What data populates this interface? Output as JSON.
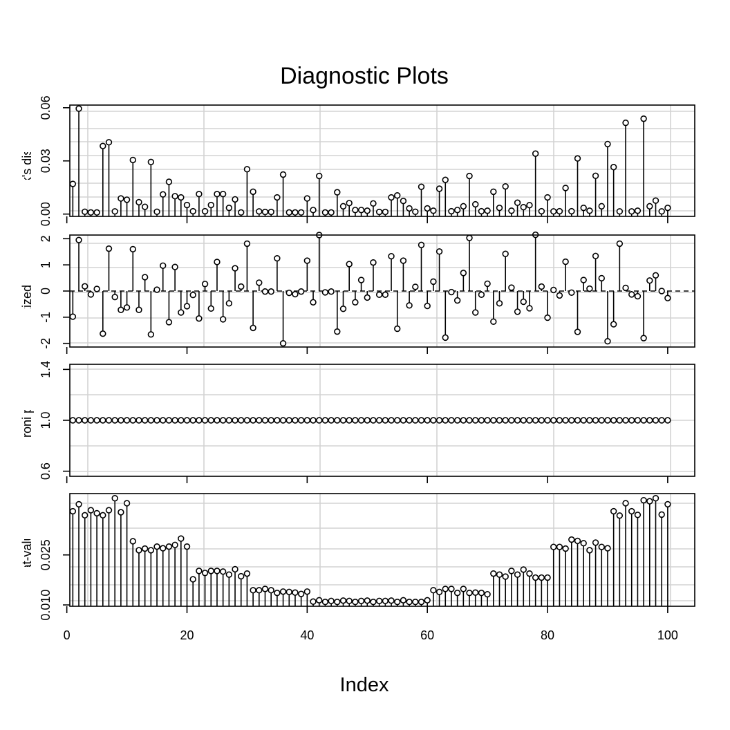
{
  "title": "Diagnostic Plots",
  "x_axis": {
    "label": "Index",
    "ticks": [
      0,
      20,
      40,
      60,
      80,
      100
    ],
    "range": [
      0.5,
      104.5
    ]
  },
  "style": {
    "grid_color": "#d3d3d3",
    "line_color": "#000000",
    "point_fill": "#ffffff"
  },
  "chart_data": [
    {
      "type": "scatter",
      "style": "needle",
      "ylabel": "Cook's distance",
      "yticks": [
        "0.00",
        "0.03",
        "0.06"
      ],
      "ytick_values": [
        0,
        0.03,
        0.06
      ],
      "ylim": [
        -0.0013,
        0.0615
      ],
      "grid": true,
      "x": [
        1,
        2,
        3,
        4,
        5,
        6,
        7,
        8,
        9,
        10,
        11,
        12,
        13,
        14,
        15,
        16,
        17,
        18,
        19,
        20,
        21,
        22,
        23,
        24,
        25,
        26,
        27,
        28,
        29,
        30,
        31,
        32,
        33,
        34,
        35,
        36,
        37,
        38,
        39,
        40,
        41,
        42,
        43,
        44,
        45,
        46,
        47,
        48,
        49,
        50,
        51,
        52,
        53,
        54,
        55,
        56,
        57,
        58,
        59,
        60,
        61,
        62,
        63,
        64,
        65,
        66,
        67,
        68,
        69,
        70,
        71,
        72,
        73,
        74,
        75,
        76,
        77,
        78,
        79,
        80,
        81,
        82,
        83,
        84,
        85,
        86,
        87,
        88,
        89,
        90,
        91,
        92,
        93,
        94,
        95,
        96,
        97,
        98,
        99,
        100
      ],
      "values": [
        0.017,
        0.0595,
        0.0013,
        0.0009,
        0.0009,
        0.0384,
        0.0405,
        0.0015,
        0.0088,
        0.0081,
        0.0305,
        0.0067,
        0.0041,
        0.0294,
        0.0013,
        0.0111,
        0.0182,
        0.0101,
        0.0094,
        0.0051,
        0.0016,
        0.0113,
        0.0016,
        0.0051,
        0.0113,
        0.0113,
        0.0035,
        0.0083,
        0.0009,
        0.0253,
        0.0126,
        0.0015,
        0.0012,
        0.0012,
        0.0094,
        0.0223,
        0.0009,
        0.0009,
        0.0009,
        0.0088,
        0.0023,
        0.0215,
        0.0009,
        0.0009,
        0.0123,
        0.0044,
        0.0062,
        0.0023,
        0.0023,
        0.0019,
        0.006,
        0.0012,
        0.0012,
        0.0094,
        0.0105,
        0.0074,
        0.0032,
        0.0013,
        0.0154,
        0.0032,
        0.0019,
        0.0143,
        0.0193,
        0.0016,
        0.0023,
        0.0044,
        0.0215,
        0.0055,
        0.0016,
        0.0019,
        0.0126,
        0.0035,
        0.0156,
        0.0019,
        0.0064,
        0.0039,
        0.005,
        0.0341,
        0.0016,
        0.0094,
        0.0015,
        0.0016,
        0.0147,
        0.0016,
        0.0314,
        0.0035,
        0.0019,
        0.0216,
        0.0044,
        0.0395,
        0.0265,
        0.0015,
        0.0515,
        0.0015,
        0.0019,
        0.0538,
        0.0044,
        0.0076,
        0.0015,
        0.0035
      ]
    },
    {
      "type": "scatter",
      "style": "needle-from-zero",
      "ylabel": "Studentized residuals",
      "yticks": [
        "-2",
        "-1",
        "0",
        "1",
        "2"
      ],
      "ytick_values": [
        -2,
        -1,
        0,
        1,
        2
      ],
      "ylim": [
        -2.14,
        2.14
      ],
      "reference_line": 0,
      "grid": true,
      "x": [
        1,
        2,
        3,
        4,
        5,
        6,
        7,
        8,
        9,
        10,
        11,
        12,
        13,
        14,
        15,
        16,
        17,
        18,
        19,
        20,
        21,
        22,
        23,
        24,
        25,
        26,
        27,
        28,
        29,
        30,
        31,
        32,
        33,
        34,
        35,
        36,
        37,
        38,
        39,
        40,
        41,
        42,
        43,
        44,
        45,
        46,
        47,
        48,
        49,
        50,
        51,
        52,
        53,
        54,
        55,
        56,
        57,
        58,
        59,
        60,
        61,
        62,
        63,
        64,
        65,
        66,
        67,
        68,
        69,
        70,
        71,
        72,
        73,
        74,
        75,
        76,
        77,
        78,
        79,
        80,
        81,
        82,
        83,
        84,
        85,
        86,
        87,
        88,
        89,
        90,
        91,
        92,
        93,
        94,
        95,
        96,
        97,
        98,
        99,
        100
      ],
      "values": [
        -0.98,
        1.95,
        0.18,
        -0.13,
        0.08,
        -1.63,
        1.62,
        -0.23,
        -0.72,
        -0.63,
        1.6,
        -0.72,
        0.53,
        -1.66,
        0.05,
        0.97,
        -1.19,
        0.92,
        -0.82,
        -0.58,
        -0.15,
        -1.05,
        0.27,
        -0.67,
        1.11,
        -1.08,
        -0.47,
        0.87,
        0.17,
        1.81,
        -1.41,
        0.32,
        -0.02,
        -0.02,
        1.25,
        -2.0,
        -0.07,
        -0.12,
        -0.02,
        1.16,
        -0.43,
        2.14,
        -0.05,
        -0.02,
        -1.55,
        -0.68,
        1.03,
        -0.43,
        0.42,
        -0.25,
        1.09,
        -0.14,
        -0.14,
        1.33,
        -1.44,
        1.16,
        -0.55,
        0.16,
        1.76,
        -0.57,
        0.36,
        1.51,
        -1.78,
        -0.04,
        -0.36,
        0.69,
        2.03,
        -0.82,
        -0.14,
        0.28,
        -1.17,
        -0.47,
        1.42,
        0.13,
        -0.79,
        -0.41,
        -0.66,
        2.15,
        0.17,
        -1.02,
        0.04,
        -0.17,
        1.12,
        -0.06,
        -1.56,
        0.42,
        0.09,
        1.34,
        0.49,
        -1.92,
        -1.27,
        1.81,
        0.12,
        -0.13,
        -0.2,
        -1.8,
        0.4,
        0.6,
        0.0,
        -0.27
      ]
    },
    {
      "type": "scatter",
      "style": "points",
      "ylabel": "Bonferroni p-values",
      "yticks": [
        "0.6",
        "1.0",
        "1.4"
      ],
      "ytick_values": [
        0.6,
        1.0,
        1.4
      ],
      "ylim": [
        0.56,
        1.44
      ],
      "grid": true,
      "x": [
        1,
        2,
        3,
        4,
        5,
        6,
        7,
        8,
        9,
        10,
        11,
        12,
        13,
        14,
        15,
        16,
        17,
        18,
        19,
        20,
        21,
        22,
        23,
        24,
        25,
        26,
        27,
        28,
        29,
        30,
        31,
        32,
        33,
        34,
        35,
        36,
        37,
        38,
        39,
        40,
        41,
        42,
        43,
        44,
        45,
        46,
        47,
        48,
        49,
        50,
        51,
        52,
        53,
        54,
        55,
        56,
        57,
        58,
        59,
        60,
        61,
        62,
        63,
        64,
        65,
        66,
        67,
        68,
        69,
        70,
        71,
        72,
        73,
        74,
        75,
        76,
        77,
        78,
        79,
        80,
        81,
        82,
        83,
        84,
        85,
        86,
        87,
        88,
        89,
        90,
        91,
        92,
        93,
        94,
        95,
        96,
        97,
        98,
        99,
        100
      ],
      "values": [
        1,
        1,
        1,
        1,
        1,
        1,
        1,
        1,
        1,
        1,
        1,
        1,
        1,
        1,
        1,
        1,
        1,
        1,
        1,
        1,
        1,
        1,
        1,
        1,
        1,
        1,
        1,
        1,
        1,
        1,
        1,
        1,
        1,
        1,
        1,
        1,
        1,
        1,
        1,
        1,
        1,
        1,
        1,
        1,
        1,
        1,
        1,
        1,
        1,
        1,
        1,
        1,
        1,
        1,
        1,
        1,
        1,
        1,
        1,
        1,
        1,
        1,
        1,
        1,
        1,
        1,
        1,
        1,
        1,
        1,
        1,
        1,
        1,
        1,
        1,
        1,
        1,
        1,
        1,
        1,
        1,
        1,
        1,
        1,
        1,
        1,
        1,
        1,
        1,
        1,
        1,
        1,
        1,
        1,
        1,
        1,
        1,
        1,
        1,
        1
      ]
    },
    {
      "type": "scatter",
      "style": "needle",
      "ylabel": "hat-values",
      "yticks": [
        "0.010",
        "0.025"
      ],
      "ytick_values": [
        0.01,
        0.025
      ],
      "ylim": [
        0.0096,
        0.0434
      ],
      "grid": true,
      "x": [
        1,
        2,
        3,
        4,
        5,
        6,
        7,
        8,
        9,
        10,
        11,
        12,
        13,
        14,
        15,
        16,
        17,
        18,
        19,
        20,
        21,
        22,
        23,
        24,
        25,
        26,
        27,
        28,
        29,
        30,
        31,
        32,
        33,
        34,
        35,
        36,
        37,
        38,
        39,
        40,
        41,
        42,
        43,
        44,
        45,
        46,
        47,
        48,
        49,
        50,
        51,
        52,
        53,
        54,
        55,
        56,
        57,
        58,
        59,
        60,
        61,
        62,
        63,
        64,
        65,
        66,
        67,
        68,
        69,
        70,
        71,
        72,
        73,
        74,
        75,
        76,
        77,
        78,
        79,
        80,
        81,
        82,
        83,
        84,
        85,
        86,
        87,
        88,
        89,
        90,
        91,
        92,
        93,
        94,
        95,
        96,
        97,
        98,
        99,
        100
      ],
      "values": [
        0.0381,
        0.0402,
        0.0369,
        0.0384,
        0.0375,
        0.0369,
        0.0384,
        0.042,
        0.0378,
        0.0405,
        0.0291,
        0.0264,
        0.0269,
        0.0264,
        0.0275,
        0.027,
        0.0275,
        0.028,
        0.0299,
        0.0275,
        0.0177,
        0.0202,
        0.0196,
        0.0202,
        0.0202,
        0.02,
        0.0191,
        0.0207,
        0.0186,
        0.0194,
        0.0144,
        0.0144,
        0.0148,
        0.0144,
        0.0136,
        0.014,
        0.0139,
        0.0137,
        0.0133,
        0.014,
        0.011,
        0.0114,
        0.0109,
        0.0112,
        0.0109,
        0.0113,
        0.0112,
        0.0109,
        0.0112,
        0.0113,
        0.0109,
        0.0112,
        0.0112,
        0.0113,
        0.0109,
        0.0114,
        0.0109,
        0.0109,
        0.0109,
        0.0114,
        0.0144,
        0.0139,
        0.0148,
        0.0148,
        0.0136,
        0.0148,
        0.0136,
        0.0137,
        0.0136,
        0.0132,
        0.0194,
        0.0191,
        0.0185,
        0.0202,
        0.0191,
        0.0206,
        0.0194,
        0.0182,
        0.0182,
        0.0182,
        0.0274,
        0.0274,
        0.0269,
        0.0296,
        0.0292,
        0.0285,
        0.0264,
        0.0287,
        0.0274,
        0.027,
        0.0381,
        0.0368,
        0.0405,
        0.0381,
        0.037,
        0.0414,
        0.0411,
        0.042,
        0.0371,
        0.0402
      ]
    }
  ]
}
